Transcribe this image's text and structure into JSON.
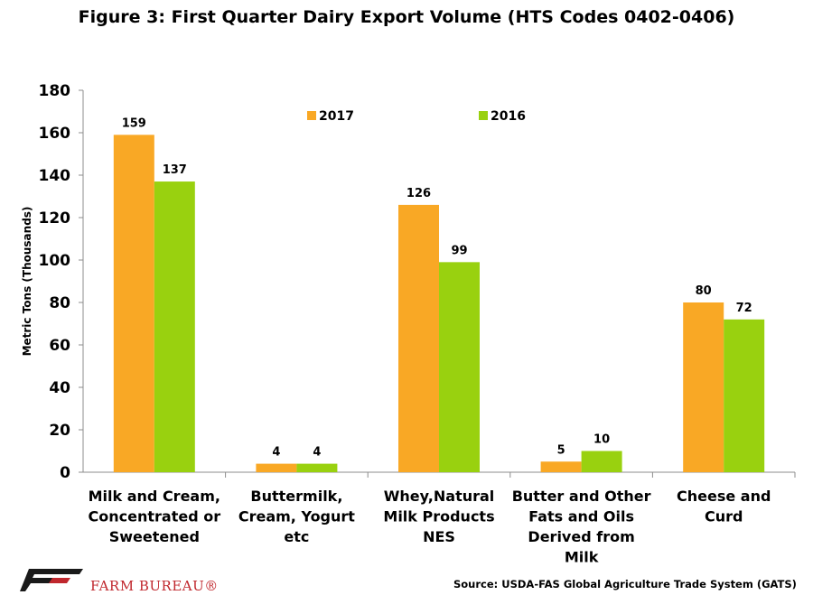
{
  "chart_data": {
    "type": "bar",
    "title": "Figure 3: First Quarter Dairy Export Volume (HTS Codes 0402-0406)",
    "ylabel": "Metric Tons (Thousands)",
    "xlabel": "",
    "ylim": [
      0,
      180
    ],
    "yticks": [
      0,
      20,
      40,
      60,
      80,
      100,
      120,
      140,
      160,
      180
    ],
    "categories": [
      [
        "Milk and Cream,",
        "Concentrated or",
        "Sweetened"
      ],
      [
        "Buttermilk,",
        "Cream, Yogurt",
        "etc"
      ],
      [
        "Whey,Natural",
        "Milk Products",
        "NES"
      ],
      [
        "Butter and Other",
        "Fats and Oils",
        "Derived from",
        "Milk"
      ],
      [
        "Cheese and",
        "Curd"
      ]
    ],
    "series": [
      {
        "name": "2017",
        "color": "#f9a825",
        "values": [
          159,
          4,
          126,
          5,
          80
        ]
      },
      {
        "name": "2016",
        "color": "#99d10f",
        "values": [
          137,
          4,
          99,
          10,
          72
        ]
      }
    ],
    "data_labels": true,
    "grid": false,
    "legend_position": "top-center"
  },
  "footer": {
    "brand": "FARM BUREAU®",
    "source": "Source: USDA-FAS Global Agriculture Trade System (GATS)"
  }
}
